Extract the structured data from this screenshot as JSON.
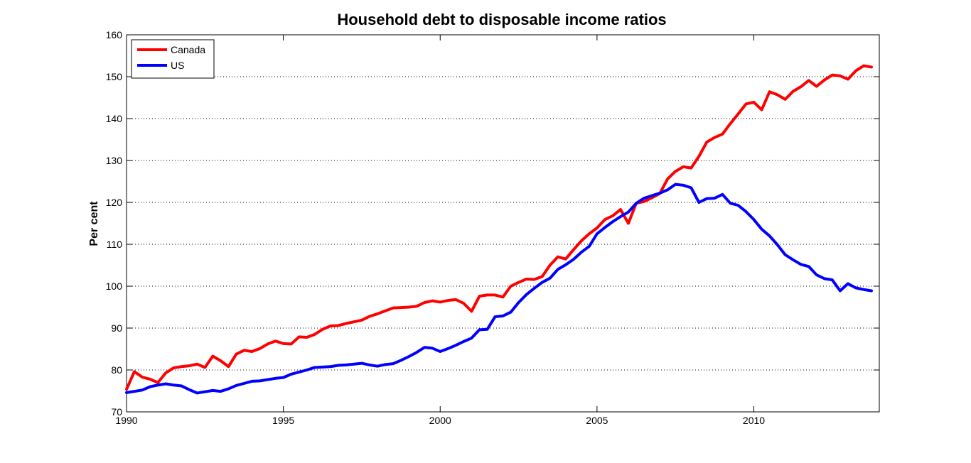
{
  "chart_data": {
    "type": "line",
    "title": "Household debt to disposable income ratios",
    "xlabel": "",
    "ylabel": "Per cent",
    "xlim": [
      1990,
      2014
    ],
    "ylim": [
      70,
      160
    ],
    "xticks": [
      1990,
      1995,
      2000,
      2005,
      2010
    ],
    "yticks": [
      70,
      80,
      90,
      100,
      110,
      120,
      130,
      140,
      150,
      160
    ],
    "grid": "horizontal-dotted",
    "legend_position": "top-left",
    "series": [
      {
        "name": "Canada",
        "color": "#ff0000",
        "x": [
          1990.0,
          1990.25,
          1990.5,
          1990.75,
          1991.0,
          1991.25,
          1991.5,
          1991.75,
          1992.0,
          1992.25,
          1992.5,
          1992.75,
          1993.0,
          1993.25,
          1993.5,
          1993.75,
          1994.0,
          1994.25,
          1994.5,
          1994.75,
          1995.0,
          1995.25,
          1995.5,
          1995.75,
          1996.0,
          1996.25,
          1996.5,
          1996.75,
          1997.0,
          1997.25,
          1997.5,
          1997.75,
          1998.0,
          1998.25,
          1998.5,
          1998.75,
          1999.0,
          1999.25,
          1999.5,
          1999.75,
          2000.0,
          2000.25,
          2000.5,
          2000.75,
          2001.0,
          2001.25,
          2001.5,
          2001.75,
          2002.0,
          2002.25,
          2002.5,
          2002.75,
          2003.0,
          2003.25,
          2003.5,
          2003.75,
          2004.0,
          2004.25,
          2004.5,
          2004.75,
          2005.0,
          2005.25,
          2005.5,
          2005.75,
          2006.0,
          2006.25,
          2006.5,
          2006.75,
          2007.0,
          2007.25,
          2007.5,
          2007.75,
          2008.0,
          2008.25,
          2008.5,
          2008.75,
          2009.0,
          2009.25,
          2009.5,
          2009.75,
          2010.0,
          2010.25,
          2010.5,
          2010.75,
          2011.0,
          2011.25,
          2011.5,
          2011.75,
          2012.0,
          2012.25,
          2012.5,
          2012.75,
          2013.0,
          2013.25,
          2013.5,
          2013.75
        ],
        "values": [
          75.4,
          79.6,
          78.3,
          77.8,
          77.0,
          79.3,
          80.5,
          80.8,
          81.0,
          81.4,
          80.6,
          83.3,
          82.2,
          80.8,
          83.8,
          84.7,
          84.4,
          85.1,
          86.2,
          86.9,
          86.3,
          86.2,
          87.9,
          87.8,
          88.5,
          89.7,
          90.5,
          90.6,
          91.1,
          91.5,
          91.9,
          92.8,
          93.4,
          94.1,
          94.8,
          94.9,
          95.0,
          95.2,
          96.1,
          96.5,
          96.2,
          96.6,
          96.8,
          95.9,
          94.0,
          97.6,
          97.9,
          97.9,
          97.4,
          100.0,
          100.9,
          101.7,
          101.6,
          102.3,
          105.0,
          107.0,
          106.5,
          108.7,
          110.8,
          112.5,
          113.9,
          115.9,
          116.8,
          118.3,
          115.0,
          119.8,
          120.2,
          121.1,
          122.1,
          125.6,
          127.4,
          128.5,
          128.2,
          131.0,
          134.4,
          135.5,
          136.3,
          138.8,
          141.1,
          143.5,
          143.9,
          142.1,
          146.4,
          145.7,
          144.6,
          146.5,
          147.6,
          149.1,
          147.7,
          149.2,
          150.4,
          150.2,
          149.4,
          151.4,
          152.6,
          152.3
        ]
      },
      {
        "name": "US",
        "color": "#0000ff",
        "x": [
          1990.0,
          1990.25,
          1990.5,
          1990.75,
          1991.0,
          1991.25,
          1991.5,
          1991.75,
          1992.0,
          1992.25,
          1992.5,
          1992.75,
          1993.0,
          1993.25,
          1993.5,
          1993.75,
          1994.0,
          1994.25,
          1994.5,
          1994.75,
          1995.0,
          1995.25,
          1995.5,
          1995.75,
          1996.0,
          1996.25,
          1996.5,
          1996.75,
          1997.0,
          1997.25,
          1997.5,
          1997.75,
          1998.0,
          1998.25,
          1998.5,
          1998.75,
          1999.0,
          1999.25,
          1999.5,
          1999.75,
          2000.0,
          2000.25,
          2000.5,
          2000.75,
          2001.0,
          2001.25,
          2001.5,
          2001.75,
          2002.0,
          2002.25,
          2002.5,
          2002.75,
          2003.0,
          2003.25,
          2003.5,
          2003.75,
          2004.0,
          2004.25,
          2004.5,
          2004.75,
          2005.0,
          2005.25,
          2005.5,
          2005.75,
          2006.0,
          2006.25,
          2006.5,
          2006.75,
          2007.0,
          2007.25,
          2007.5,
          2007.75,
          2008.0,
          2008.25,
          2008.5,
          2008.75,
          2009.0,
          2009.25,
          2009.5,
          2009.75,
          2010.0,
          2010.25,
          2010.5,
          2010.75,
          2011.0,
          2011.25,
          2011.5,
          2011.75,
          2012.0,
          2012.25,
          2012.5,
          2012.75,
          2013.0,
          2013.25,
          2013.5,
          2013.75
        ],
        "values": [
          74.6,
          74.9,
          75.2,
          76.0,
          76.4,
          76.7,
          76.4,
          76.2,
          75.3,
          74.5,
          74.8,
          75.1,
          74.9,
          75.5,
          76.3,
          76.8,
          77.3,
          77.4,
          77.7,
          78.0,
          78.2,
          79.0,
          79.5,
          80.0,
          80.6,
          80.7,
          80.8,
          81.1,
          81.2,
          81.4,
          81.6,
          81.2,
          80.9,
          81.3,
          81.5,
          82.3,
          83.2,
          84.2,
          85.4,
          85.2,
          84.4,
          85.1,
          85.9,
          86.8,
          87.6,
          89.6,
          89.7,
          92.7,
          92.9,
          93.8,
          96.1,
          98.0,
          99.5,
          100.9,
          101.9,
          104.0,
          105.1,
          106.4,
          108.1,
          109.5,
          112.5,
          114.0,
          115.4,
          116.6,
          117.7,
          119.8,
          121.0,
          121.6,
          122.2,
          123.0,
          124.3,
          124.1,
          123.5,
          120.0,
          120.9,
          121.0,
          121.9,
          119.8,
          119.3,
          117.8,
          115.9,
          113.6,
          112.0,
          109.9,
          107.5,
          106.3,
          105.2,
          104.7,
          102.7,
          101.8,
          101.5,
          98.9,
          100.6,
          99.6,
          99.2,
          98.9
        ]
      }
    ]
  }
}
